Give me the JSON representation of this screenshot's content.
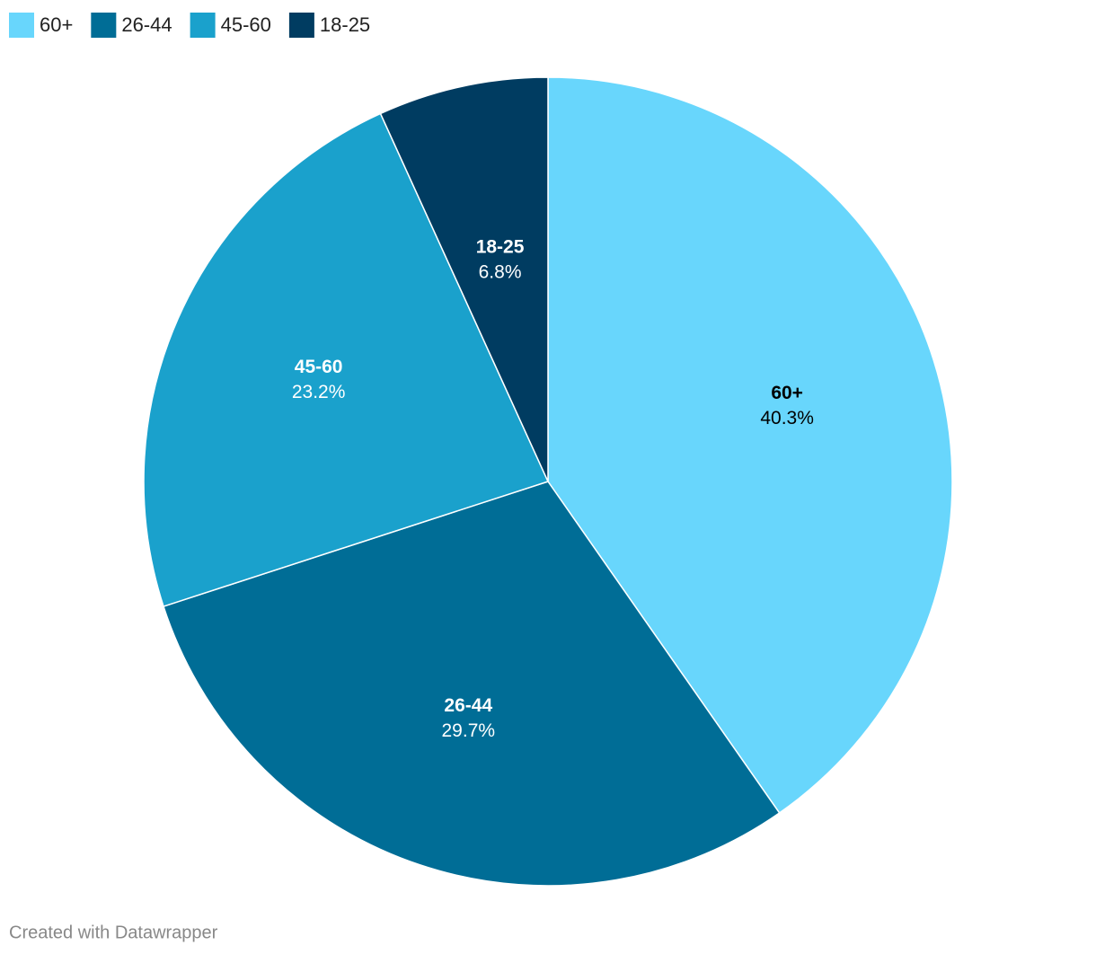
{
  "chart_data": {
    "type": "pie",
    "categories": [
      "60+",
      "26-44",
      "45-60",
      "18-25"
    ],
    "values": [
      40.3,
      29.7,
      23.2,
      6.8
    ],
    "value_labels": [
      "40.3%",
      "29.7%",
      "23.2%",
      "6.8%"
    ],
    "colors": [
      "#68d6fc",
      "#006d96",
      "#1aa1cc",
      "#003c61"
    ],
    "legend": "top-left",
    "credit": "Created with Datawrapper"
  }
}
